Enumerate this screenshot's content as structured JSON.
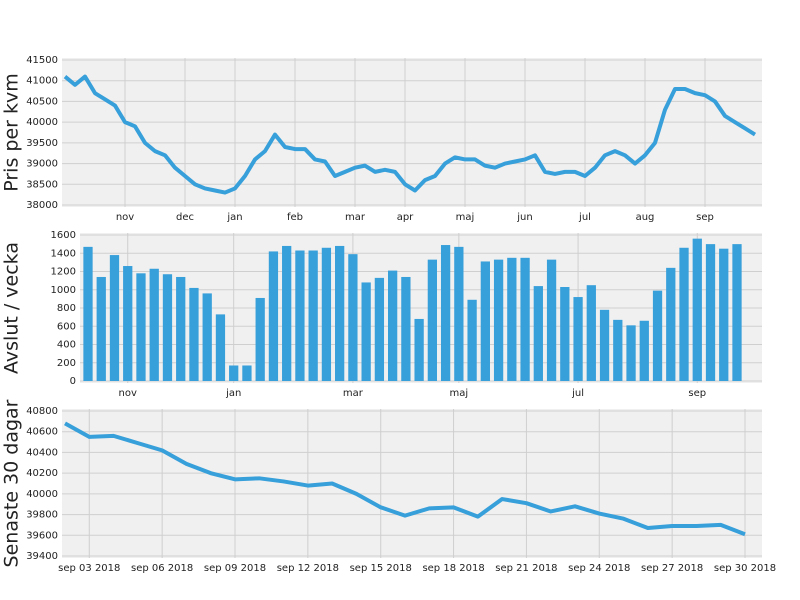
{
  "chart_data": [
    {
      "type": "line",
      "y_label": "Pris per kvm",
      "color": "#379fda",
      "grid": true,
      "categories": [
        null,
        null,
        null,
        null,
        null,
        null,
        "nov",
        null,
        null,
        null,
        null,
        null,
        "dec",
        null,
        null,
        null,
        null,
        "jan",
        null,
        null,
        null,
        null,
        null,
        "feb",
        null,
        null,
        null,
        null,
        null,
        "mar",
        null,
        null,
        null,
        null,
        "apr",
        null,
        null,
        null,
        null,
        null,
        "maj",
        null,
        null,
        null,
        null,
        null,
        "jun",
        null,
        null,
        null,
        null,
        null,
        "jul",
        null,
        null,
        null,
        null,
        null,
        "aug",
        null,
        null,
        null,
        null,
        null,
        "sep",
        null,
        null,
        null,
        null,
        null
      ],
      "values": [
        41100,
        40900,
        41100,
        40700,
        40550,
        40400,
        40000,
        39900,
        39500,
        39300,
        39200,
        38900,
        38700,
        38500,
        38400,
        38350,
        38300,
        38400,
        38700,
        39100,
        39300,
        39700,
        39400,
        39350,
        39350,
        39100,
        39050,
        38700,
        38800,
        38900,
        38950,
        38800,
        38850,
        38800,
        38500,
        38350,
        38600,
        38700,
        39000,
        39150,
        39100,
        39100,
        38950,
        38900,
        39000,
        39050,
        39100,
        39200,
        38800,
        38750,
        38800,
        38800,
        38700,
        38900,
        39200,
        39300,
        39200,
        39000,
        39200,
        39500,
        40300,
        40800,
        40800,
        40700,
        40650,
        40500,
        40150,
        40000,
        39850,
        39700
      ],
      "ylim": [
        38000,
        41500
      ],
      "yticks": [
        38000,
        38500,
        39000,
        39500,
        40000,
        40500,
        41000,
        41500
      ]
    },
    {
      "type": "bar",
      "y_label": "Avslut / vecka",
      "color": "#379fda",
      "grid": true,
      "categories": [
        null,
        null,
        null,
        "nov",
        null,
        null,
        null,
        null,
        null,
        null,
        null,
        "jan",
        null,
        null,
        null,
        null,
        null,
        null,
        null,
        null,
        "mar",
        null,
        null,
        null,
        null,
        null,
        null,
        null,
        "maj",
        null,
        null,
        null,
        null,
        null,
        null,
        null,
        null,
        "jul",
        null,
        null,
        null,
        null,
        null,
        null,
        null,
        null,
        "sep",
        null,
        null,
        null
      ],
      "values": [
        1470,
        1140,
        1380,
        1260,
        1180,
        1230,
        1170,
        1140,
        1020,
        960,
        730,
        170,
        170,
        910,
        1420,
        1480,
        1430,
        1430,
        1460,
        1480,
        1390,
        1080,
        1130,
        1210,
        1140,
        680,
        1330,
        1490,
        1470,
        890,
        1310,
        1330,
        1350,
        1350,
        1040,
        1330,
        1030,
        920,
        1050,
        780,
        670,
        610,
        660,
        990,
        1240,
        1460,
        1560,
        1500,
        1450,
        1500
      ],
      "ylim": [
        0,
        1600
      ],
      "yticks": [
        0,
        200,
        400,
        600,
        800,
        1000,
        1200,
        1400,
        1600
      ]
    },
    {
      "type": "line",
      "y_label": "Senaste 30 dagar",
      "color": "#379fda",
      "grid": true,
      "categories": [
        null,
        "sep 03 2018",
        null,
        null,
        "sep 06 2018",
        null,
        null,
        "sep 09 2018",
        null,
        null,
        "sep 12 2018",
        null,
        null,
        "sep 15 2018",
        null,
        null,
        "sep 18 2018",
        null,
        null,
        "sep 21 2018",
        null,
        null,
        "sep 24 2018",
        null,
        null,
        "sep 27 2018",
        null,
        null,
        "sep 30 2018"
      ],
      "values": [
        40680,
        40550,
        40560,
        40490,
        40420,
        40290,
        40200,
        40140,
        40150,
        40120,
        40080,
        40100,
        40000,
        39870,
        39790,
        39860,
        39870,
        39780,
        39950,
        39910,
        39830,
        39880,
        39810,
        39760,
        39670,
        39690,
        39690,
        39700,
        39610
      ],
      "ylim": [
        39400,
        40800
      ],
      "yticks": [
        39400,
        39600,
        39800,
        40000,
        40200,
        40400,
        40600,
        40800
      ]
    }
  ]
}
